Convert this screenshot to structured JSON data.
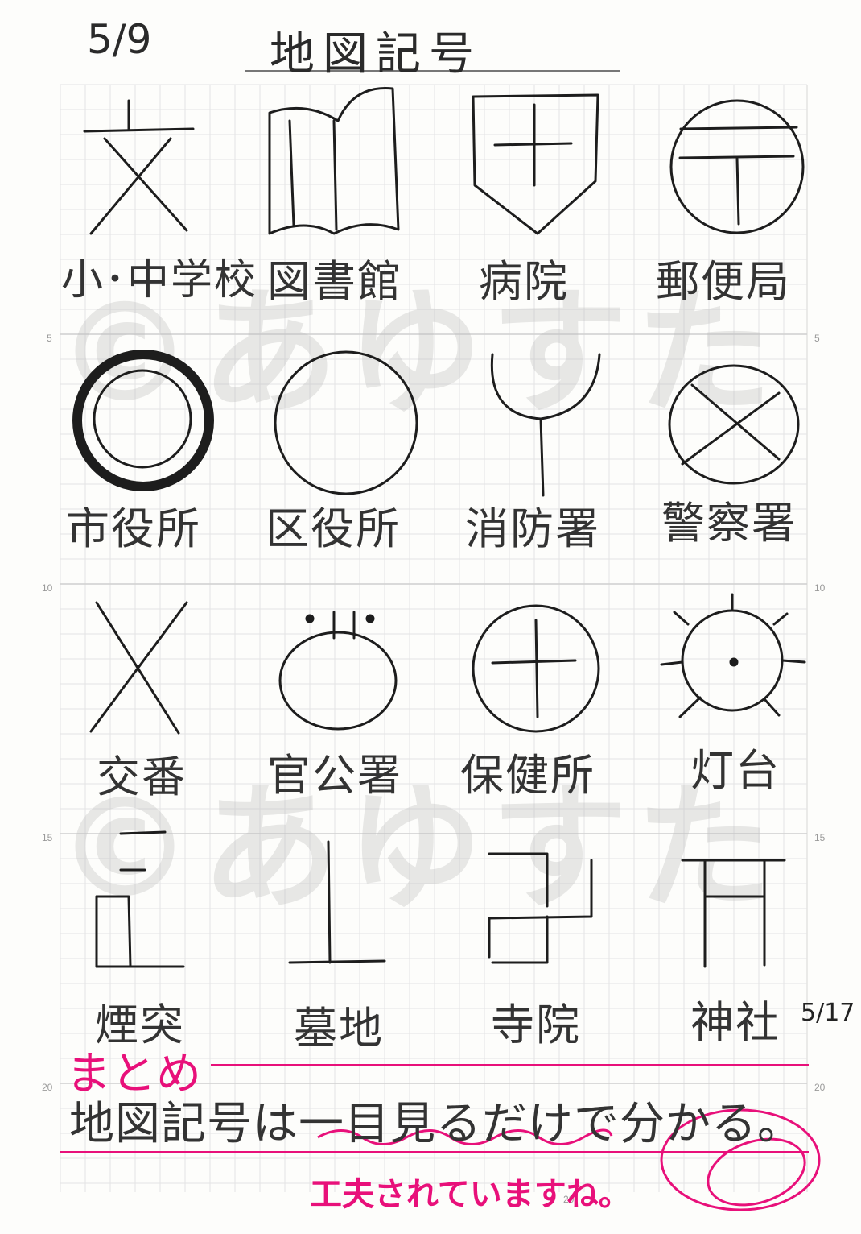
{
  "header": {
    "date": "5/9",
    "title": "地図記号"
  },
  "grid_numbers": [
    "5",
    "10",
    "15",
    "20",
    "20",
    "5",
    "10",
    "15",
    "20"
  ],
  "watermark": "©あゆすた",
  "symbols": [
    {
      "label": "小･中学校",
      "icon": "school-icon"
    },
    {
      "label": "図書館",
      "icon": "library-icon"
    },
    {
      "label": "病院",
      "icon": "hospital-icon"
    },
    {
      "label": "郵便局",
      "icon": "post-office-icon"
    },
    {
      "label": "市役所",
      "icon": "city-hall-icon"
    },
    {
      "label": "区役所",
      "icon": "ward-office-icon"
    },
    {
      "label": "消防署",
      "icon": "fire-station-icon"
    },
    {
      "label": "警察署",
      "icon": "police-station-icon"
    },
    {
      "label": "交番",
      "icon": "police-box-icon"
    },
    {
      "label": "官公署",
      "icon": "government-office-icon"
    },
    {
      "label": "保健所",
      "icon": "health-center-icon"
    },
    {
      "label": "灯台",
      "icon": "lighthouse-icon"
    },
    {
      "label": "煙突",
      "icon": "chimney-icon"
    },
    {
      "label": "墓地",
      "icon": "cemetery-icon"
    },
    {
      "label": "寺院",
      "icon": "temple-icon"
    },
    {
      "label": "神社",
      "icon": "shrine-icon"
    }
  ],
  "summary": {
    "heading": "まとめ",
    "date": "5/17",
    "text": "地図記号は一目見るだけで分かる。"
  },
  "teacher_comment": {
    "text": "工夫されていますね。",
    "mark": "◎",
    "color": "#e8107a"
  }
}
